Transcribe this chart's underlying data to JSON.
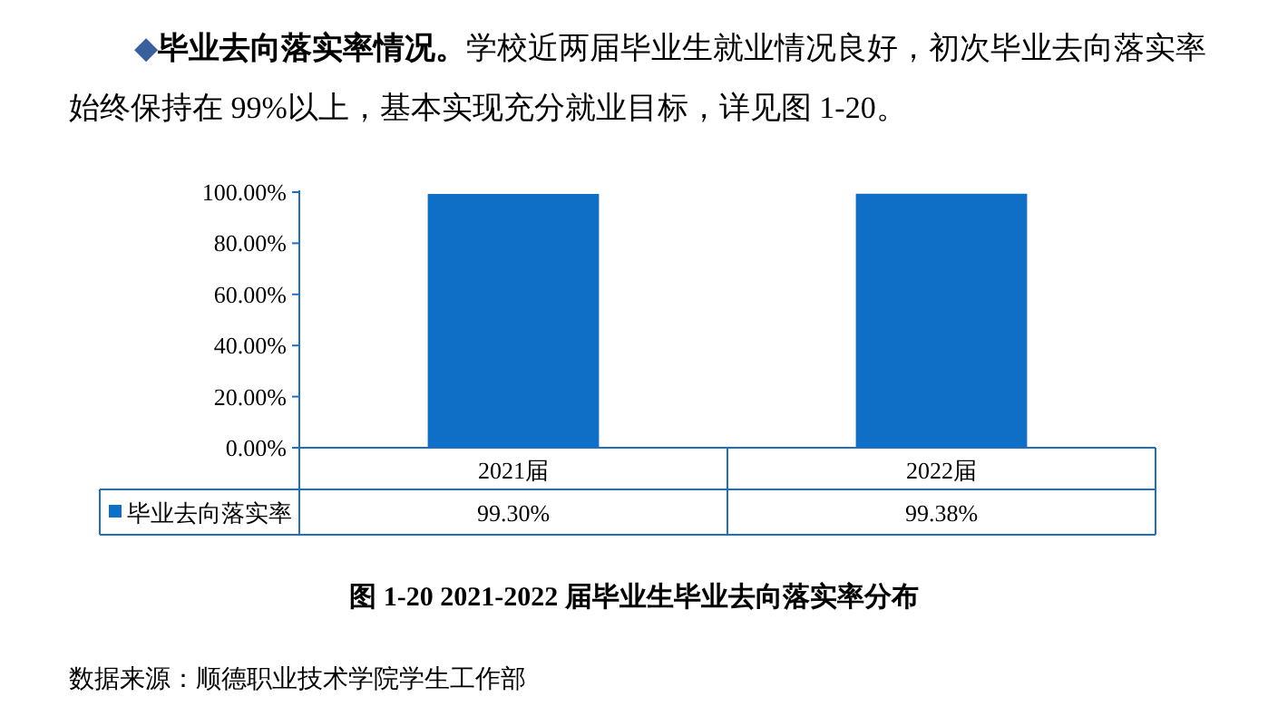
{
  "chart_data": {
    "type": "bar",
    "title": "图 1-20 2021-2022 届毕业生毕业去向落实率分布",
    "categories": [
      "2021届",
      "2022届"
    ],
    "series": [
      {
        "name": "毕业去向落实率",
        "color": "#0f6fc6",
        "values": [
          99.3,
          99.38
        ],
        "value_labels": [
          "99.30%",
          "99.38%"
        ]
      }
    ],
    "ylim": [
      0,
      100
    ],
    "yticks": [
      {
        "value": 0,
        "label": "0.00%"
      },
      {
        "value": 20,
        "label": "20.00%"
      },
      {
        "value": 40,
        "label": "40.00%"
      },
      {
        "value": 60,
        "label": "60.00%"
      },
      {
        "value": 80,
        "label": "80.00%"
      },
      {
        "value": 100,
        "label": "100.00%"
      }
    ],
    "legend": "bottom",
    "annotations": [
      "◆**毕业去向落实率情况。**学校近两届毕业生就业情况良好，初次毕业去向落实率始终保持在 99%以上，基本实现充分就业目标，详见图 1-20。",
      "数据来源：顺德职业技术学院学生工作部"
    ]
  }
}
